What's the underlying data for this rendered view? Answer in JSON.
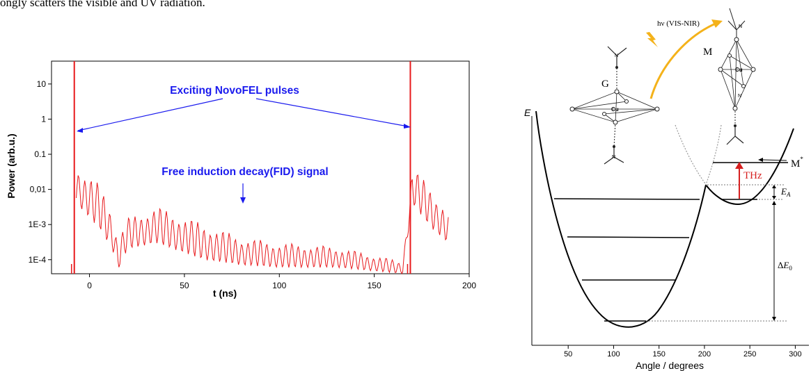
{
  "page": {
    "caption_text": "ongly scatters the visible and UV radiation."
  },
  "chart_data": [
    {
      "type": "line",
      "title": "",
      "xlabel": "t (ns)",
      "ylabel": "Power (arb.u.)",
      "xlim": [
        -20,
        200
      ],
      "ylim_log10": [
        -4.4,
        1.65
      ],
      "y_scale": "log",
      "x_ticks": [
        0,
        50,
        100,
        150,
        200
      ],
      "y_ticks": [
        {
          "value": 10,
          "label": "10"
        },
        {
          "value": 1,
          "label": "1"
        },
        {
          "value": 0.1,
          "label": "0.1"
        },
        {
          "value": 0.01,
          "label": "0,01"
        },
        {
          "value": 0.001,
          "label": "1E-3"
        },
        {
          "value": 0.0001,
          "label": "1E-4"
        }
      ],
      "color": "#e8191c",
      "annotation_color": "#1a1aee",
      "pulses": [
        {
          "t": -8,
          "peak": 40
        },
        {
          "t": 169,
          "peak": 40
        }
      ],
      "fid_envelope": [
        {
          "t": -7,
          "hi": 0.04,
          "lo": 0.004
        },
        {
          "t": 5,
          "hi": 0.01,
          "lo": 0.0008
        },
        {
          "t": 12,
          "hi": 0.002,
          "lo": 0.0002
        },
        {
          "t": 15,
          "hi": 0.0003,
          "lo": 5e-05
        },
        {
          "t": 20,
          "hi": 0.0012,
          "lo": 0.0002
        },
        {
          "t": 35,
          "hi": 0.0025,
          "lo": 0.0003
        },
        {
          "t": 60,
          "hi": 0.0008,
          "lo": 0.0001
        },
        {
          "t": 80,
          "hi": 0.00035,
          "lo": 7e-05
        },
        {
          "t": 100,
          "hi": 0.00025,
          "lo": 6e-05
        },
        {
          "t": 130,
          "hi": 0.0002,
          "lo": 6e-05
        },
        {
          "t": 165,
          "hi": 8e-05,
          "lo": 4e-05
        },
        {
          "t": 170,
          "hi": 0.03,
          "lo": 0.004
        },
        {
          "t": 180,
          "hi": 0.009,
          "lo": 0.0008
        },
        {
          "t": 189,
          "hi": 0.0016,
          "lo": 0.0003
        }
      ],
      "annotations": [
        {
          "text": "Exciting NovoFEL pulses"
        },
        {
          "text": "Free induction decay(FID) signal"
        }
      ]
    },
    {
      "type": "diagram",
      "title": "",
      "xlabel": "Angle / degrees",
      "ylabel": "E",
      "xlim": [
        10,
        315
      ],
      "x_ticks": [
        50,
        100,
        150,
        200,
        250,
        300
      ],
      "labels": {
        "G": "G",
        "M": "M",
        "M_star": "M",
        "M_star_sup": "*",
        "light": "hν (VIS-NIR)",
        "thz": "THz",
        "E_A": "E",
        "E_A_sub": "A",
        "delta_E0_prefix": "Δ",
        "delta_E0": "E",
        "delta_E0_sub": "0",
        "cu": "Cu",
        "n": "N"
      },
      "colors": {
        "thz": "#d61f1f",
        "arrow": "#f4b21a",
        "curve": "#000000",
        "guide": "#9a9a9a"
      }
    }
  ]
}
